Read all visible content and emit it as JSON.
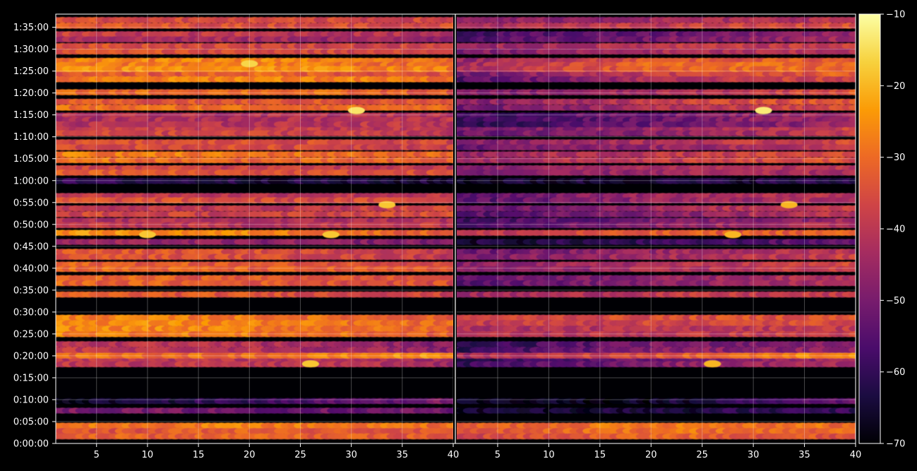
{
  "chart_data": {
    "type": "heatmap",
    "title": "",
    "colormap": "inferno",
    "background": "#000000",
    "grid": true,
    "colorbar": {
      "range": [
        -70,
        -10
      ],
      "ticks": [
        -10,
        -20,
        -30,
        -40,
        -50,
        -60,
        -70
      ],
      "tick_labels": [
        "−10",
        "−20",
        "−30",
        "−40",
        "−50",
        "−60",
        "−70"
      ],
      "placement": "right"
    },
    "y_axis": {
      "range_seconds": [
        0,
        5880
      ],
      "ticks_seconds": [
        0,
        300,
        600,
        900,
        1200,
        1500,
        1800,
        2100,
        2400,
        2700,
        3000,
        3300,
        3600,
        3900,
        4200,
        4500,
        4800,
        5100,
        5400,
        5700
      ],
      "tick_labels": [
        "0:00:00",
        "0:05:00",
        "0:10:00",
        "0:15:00",
        "0:20:00",
        "0:25:00",
        "0:30:00",
        "0:35:00",
        "0:40:00",
        "0:45:00",
        "0:50:00",
        "0:55:00",
        "1:00:00",
        "1:05:00",
        "1:10:00",
        "1:15:00",
        "1:20:00",
        "1:25:00",
        "1:30:00",
        "1:35:00"
      ]
    },
    "panels": [
      {
        "name": "left",
        "xlim": [
          1,
          40
        ],
        "x_ticks": [
          5,
          10,
          15,
          20,
          25,
          30,
          35,
          40
        ],
        "x_tick_labels": [
          "5",
          "10",
          "15",
          "20",
          "25",
          "30",
          "35",
          "40"
        ]
      },
      {
        "name": "right",
        "xlim": [
          1,
          40
        ],
        "x_ticks": [
          5,
          10,
          15,
          20,
          25,
          30,
          35,
          40
        ],
        "x_tick_labels": [
          "5",
          "10",
          "15",
          "20",
          "25",
          "30",
          "35",
          "40"
        ]
      }
    ],
    "channels_x": [
      1,
      40
    ],
    "bands": [
      {
        "t": [
          60,
          280
        ],
        "left": [
          -32,
          -30,
          -32
        ],
        "right": [
          -36,
          -30,
          -33
        ]
      },
      {
        "t": [
          400,
          500
        ],
        "left": [
          -50,
          -52,
          -52
        ],
        "right": [
          -64,
          -62,
          -58
        ]
      },
      {
        "t": [
          560,
          600
        ],
        "left": [
          -70,
          -62,
          -52
        ],
        "right": [
          -70,
          -68,
          -56
        ]
      },
      {
        "t": [
          1050,
          1190
        ],
        "left": [
          -40,
          -40,
          -44
        ],
        "right": [
          -62,
          -50,
          -44
        ]
      },
      {
        "t": [
          1190,
          1220
        ],
        "left": [
          -28,
          -28,
          -22
        ],
        "right": [
          -45,
          -34,
          -24
        ]
      },
      {
        "t": [
          1240,
          1400
        ],
        "left": [
          -40,
          -42,
          -48
        ],
        "right": [
          -60,
          -48,
          -46
        ]
      },
      {
        "t": [
          1460,
          1760
        ],
        "left": [
          -28,
          -30,
          -34
        ],
        "right": [
          -40,
          -38,
          -36
        ]
      },
      {
        "t": [
          2000,
          2080
        ],
        "left": [
          -34,
          -36,
          -40
        ],
        "right": [
          -46,
          -40,
          -40
        ]
      },
      {
        "t": [
          2160,
          2300
        ],
        "left": [
          -34,
          -36,
          -38
        ],
        "right": [
          -52,
          -46,
          -40
        ]
      },
      {
        "t": [
          2360,
          2480
        ],
        "left": [
          -32,
          -34,
          -36
        ],
        "right": [
          -48,
          -42,
          -36
        ]
      },
      {
        "t": [
          2520,
          2660
        ],
        "left": [
          -32,
          -34,
          -38
        ],
        "right": [
          -50,
          -44,
          -38
        ]
      },
      {
        "t": [
          2720,
          2800
        ],
        "left": [
          -44,
          -46,
          -48
        ],
        "right": [
          -62,
          -58,
          -50
        ]
      },
      {
        "t": [
          2850,
          2920
        ],
        "left": [
          -22,
          -24,
          -30
        ],
        "right": [
          -40,
          -32,
          -30
        ]
      },
      {
        "t": [
          2960,
          3080
        ],
        "left": [
          -40,
          -42,
          -40
        ],
        "right": [
          -56,
          -48,
          -42
        ]
      },
      {
        "t": [
          3100,
          3260
        ],
        "left": [
          -38,
          -40,
          -36
        ],
        "right": [
          -54,
          -46,
          -38
        ]
      },
      {
        "t": [
          3300,
          3420
        ],
        "left": [
          -36,
          -38,
          -38
        ],
        "right": [
          -54,
          -44,
          -40
        ]
      },
      {
        "t": [
          3570,
          3620
        ],
        "left": [
          -58,
          -60,
          -62
        ],
        "right": [
          -66,
          -64,
          -62
        ]
      },
      {
        "t": [
          3680,
          3800
        ],
        "left": [
          -34,
          -36,
          -38
        ],
        "right": [
          -48,
          -42,
          -40
        ]
      },
      {
        "t": [
          3840,
          4000
        ],
        "left": [
          -30,
          -32,
          -34
        ],
        "right": [
          -46,
          -40,
          -36
        ]
      },
      {
        "t": [
          4020,
          4160
        ],
        "left": [
          -34,
          -34,
          -36
        ],
        "right": [
          -50,
          -44,
          -38
        ]
      },
      {
        "t": [
          4220,
          4330
        ],
        "left": [
          -36,
          -36,
          -38
        ],
        "right": [
          -54,
          -48,
          -40
        ]
      },
      {
        "t": [
          4340,
          4520
        ],
        "left": [
          -40,
          -40,
          -38
        ],
        "right": [
          -58,
          -50,
          -42
        ]
      },
      {
        "t": [
          4560,
          4720
        ],
        "left": [
          -32,
          -32,
          -32
        ],
        "right": [
          -50,
          -40,
          -34
        ]
      },
      {
        "t": [
          4780,
          4840
        ],
        "left": [
          -30,
          -28,
          -32
        ],
        "right": [
          -52,
          -46,
          -36
        ]
      },
      {
        "t": [
          4950,
          5100
        ],
        "left": [
          -32,
          -28,
          -32
        ],
        "right": [
          -54,
          -40,
          -34
        ]
      },
      {
        "t": [
          5100,
          5270
        ],
        "left": [
          -28,
          -26,
          -30
        ],
        "right": [
          -44,
          -30,
          -30
        ]
      },
      {
        "t": [
          5330,
          5480
        ],
        "left": [
          -34,
          -36,
          -38
        ],
        "right": [
          -48,
          -42,
          -40
        ]
      },
      {
        "t": [
          5500,
          5640
        ],
        "left": [
          -40,
          -42,
          -44
        ],
        "right": [
          -56,
          -50,
          -44
        ]
      },
      {
        "t": [
          5680,
          5840
        ],
        "left": [
          -34,
          -36,
          -36
        ],
        "right": [
          -46,
          -42,
          -38
        ]
      }
    ],
    "hotspots": [
      {
        "panel": "left",
        "x": 30.5,
        "t": 4560,
        "value": -14
      },
      {
        "panel": "right",
        "x": 31,
        "t": 4560,
        "value": -13
      },
      {
        "panel": "left",
        "x": 20,
        "t": 5200,
        "value": -16
      },
      {
        "panel": "left",
        "x": 28,
        "t": 2860,
        "value": -18
      },
      {
        "panel": "right",
        "x": 28,
        "t": 2860,
        "value": -20
      },
      {
        "panel": "left",
        "x": 26,
        "t": 1090,
        "value": -18
      },
      {
        "panel": "right",
        "x": 26,
        "t": 1090,
        "value": -20
      },
      {
        "panel": "left",
        "x": 33.5,
        "t": 3270,
        "value": -18
      },
      {
        "panel": "right",
        "x": 33.5,
        "t": 3270,
        "value": -20
      },
      {
        "panel": "left",
        "x": 10,
        "t": 2860,
        "value": -18
      }
    ]
  }
}
